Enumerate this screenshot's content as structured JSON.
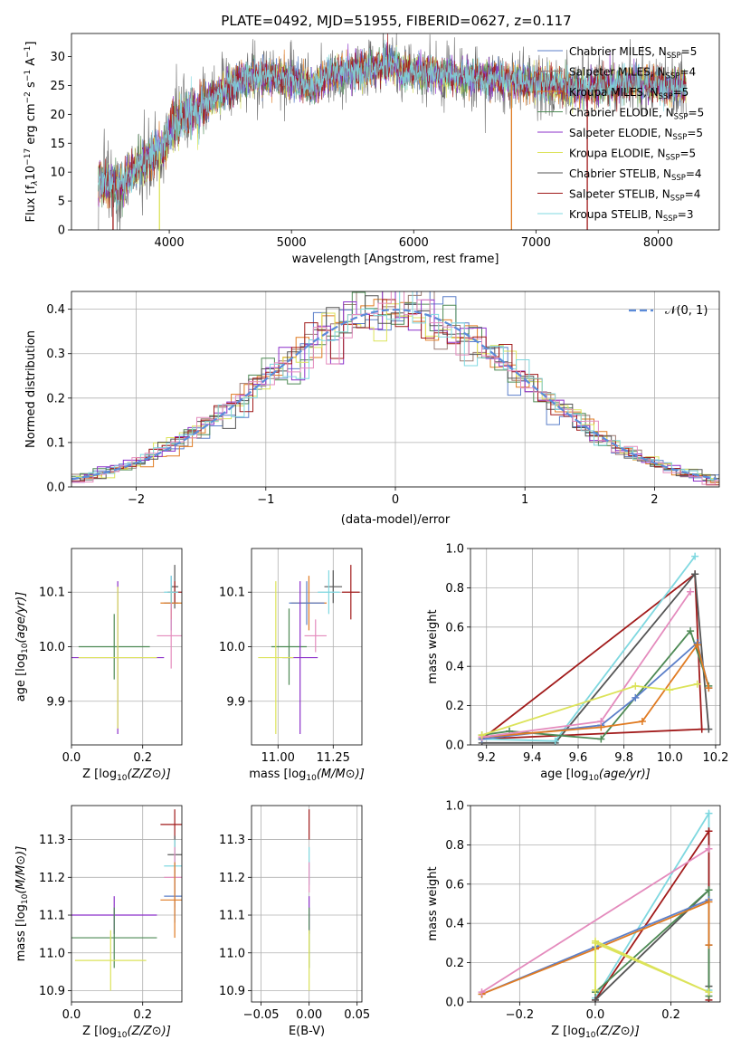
{
  "title": "PLATE=0492, MJD=51955, FIBERID=0627, z=0.117",
  "colors": {
    "chabrier_miles": "#5b7fc9",
    "salpeter_miles": "#9b7b73",
    "kroupa_miles": "#e07b22",
    "chabrier_elodie": "#4e8a55",
    "salpeter_elodie": "#8b2fc9",
    "kroupa_elodie": "#dce35a",
    "chabrier_stelib": "#555555",
    "salpeter_stelib": "#a11a1a",
    "kroupa_stelib": "#7fd8e0",
    "pink": "#e48bbd",
    "gauss": "#5b8bd9"
  },
  "legend_spectrum": [
    {
      "label": "Chabrier MILES, N",
      "sub": "SSP",
      "tail": "=5",
      "color": "#5b7fc9"
    },
    {
      "label": "Salpeter MILES, N",
      "sub": "SSP",
      "tail": "=4",
      "color": "#9b7b73"
    },
    {
      "label": "Kroupa MILES, N",
      "sub": "SSP",
      "tail": "=5",
      "color": "#e07b22"
    },
    {
      "label": "Chabrier ELODIE, N",
      "sub": "SSP",
      "tail": "=5",
      "color": "#4e8a55"
    },
    {
      "label": "Salpeter ELODIE, N",
      "sub": "SSP",
      "tail": "=5",
      "color": "#8b2fc9"
    },
    {
      "label": "Kroupa ELODIE, N",
      "sub": "SSP",
      "tail": "=5",
      "color": "#dce35a"
    },
    {
      "label": "Chabrier STELIB, N",
      "sub": "SSP",
      "tail": "=4",
      "color": "#555555"
    },
    {
      "label": "Salpeter STELIB, N",
      "sub": "SSP",
      "tail": "=4",
      "color": "#a11a1a"
    },
    {
      "label": "Kroupa STELIB, N",
      "sub": "SSP",
      "tail": "=3",
      "color": "#7fd8e0"
    }
  ],
  "legend_gauss": "𝒩(0, 1)",
  "chart_data": [
    {
      "id": "spectrum",
      "type": "line",
      "xlabel": "wavelength [Angstrom, rest frame]",
      "ylabel_parts": [
        "Flux [f",
        "λ",
        "10",
        "−17",
        " erg cm",
        "−2",
        " s",
        "−1",
        " A",
        "−1",
        "]"
      ],
      "xlim": [
        3200,
        8500
      ],
      "ylim": [
        0,
        34
      ],
      "xticks": [
        4000,
        5000,
        6000,
        7000,
        8000
      ],
      "yticks": [
        0,
        5,
        10,
        15,
        20,
        25,
        30
      ],
      "grid": false,
      "continuum": [
        [
          3420,
          8.5
        ],
        [
          3600,
          7.5
        ],
        [
          3700,
          10
        ],
        [
          3800,
          12
        ],
        [
          3950,
          14
        ],
        [
          4000,
          17
        ],
        [
          4100,
          19.5
        ],
        [
          4250,
          21
        ],
        [
          4400,
          23.5
        ],
        [
          4600,
          26
        ],
        [
          4800,
          26.5
        ],
        [
          5000,
          26
        ],
        [
          5175,
          24.5
        ],
        [
          5300,
          27
        ],
        [
          5500,
          27.5
        ],
        [
          5700,
          28
        ],
        [
          5850,
          28.5
        ],
        [
          5900,
          27
        ],
        [
          6000,
          27.5
        ],
        [
          6200,
          27
        ],
        [
          6400,
          26.5
        ],
        [
          6600,
          26.5
        ],
        [
          6800,
          25.5
        ],
        [
          7000,
          25.5
        ],
        [
          7200,
          25
        ],
        [
          7400,
          24.5
        ],
        [
          7600,
          25
        ],
        [
          7800,
          25.5
        ],
        [
          8000,
          25
        ],
        [
          8230,
          24.5
        ]
      ],
      "dips": [
        {
          "x": 3540,
          "to": 0,
          "color": "salpeter_stelib"
        },
        {
          "x": 3920,
          "to": 0,
          "color": "kroupa_elodie"
        },
        {
          "x": 6800,
          "to": 0,
          "color": "kroupa_miles"
        },
        {
          "x": 7420,
          "to": 0,
          "color": "salpeter_stelib"
        }
      ]
    },
    {
      "id": "residuals",
      "type": "histogram",
      "xlabel": "(data-model)/error",
      "ylabel": "Normed distribution",
      "xlim": [
        -2.5,
        2.5
      ],
      "ylim": [
        0,
        0.44
      ],
      "xticks": [
        -2,
        -1,
        0,
        1,
        2
      ],
      "xtick_labels": [
        "−2",
        "−1",
        "0",
        "1",
        "2"
      ],
      "yticks": [
        0.0,
        0.1,
        0.2,
        0.3,
        0.4
      ],
      "ytick_labels": [
        "0.0",
        "0.1",
        "0.2",
        "0.3",
        "0.4"
      ],
      "grid": true,
      "bin_width": 0.1,
      "legend_loc": "upper right"
    },
    {
      "id": "z_age",
      "type": "errorbar",
      "xlabel": "Z [log10(Z/Z⊙)]",
      "ylabel": "age  [log10(age/yr)]",
      "xlim": [
        0.0,
        0.31
      ],
      "ylim": [
        9.82,
        10.18
      ],
      "xticks": [
        0.0,
        0.2
      ],
      "xtick_labels": [
        "0.0",
        "0.2"
      ],
      "yticks": [
        9.9,
        10.0,
        10.1
      ],
      "ytick_labels": [
        "9.9",
        "10.0",
        "10.1"
      ],
      "points": [
        {
          "x": 0.29,
          "xerr": 0.01,
          "y": 10.11,
          "yerr": 0.04,
          "c": "chabrier_stelib"
        },
        {
          "x": 0.29,
          "xerr": 0.02,
          "y": 10.1,
          "yerr": 0.02,
          "c": "salpeter_stelib"
        },
        {
          "x": 0.28,
          "xerr": 0.02,
          "y": 10.08,
          "yerr": 0.05,
          "c": "chabrier_miles"
        },
        {
          "x": 0.28,
          "xerr": 0.03,
          "y": 10.08,
          "yerr": 0.03,
          "c": "kroupa_miles"
        },
        {
          "x": 0.28,
          "xerr": 0.02,
          "y": 10.1,
          "yerr": 0.03,
          "c": "kroupa_stelib"
        },
        {
          "x": 0.28,
          "xerr": 0.04,
          "y": 10.02,
          "yerr": 0.06,
          "c": "pink"
        },
        {
          "x": 0.12,
          "xerr": 0.1,
          "y": 10.0,
          "yerr": 0.06,
          "c": "chabrier_elodie"
        },
        {
          "x": 0.13,
          "xerr": 0.13,
          "y": 9.98,
          "yerr": 0.14,
          "c": "salpeter_elodie"
        },
        {
          "x": 0.13,
          "xerr": 0.11,
          "y": 9.98,
          "yerr": 0.13,
          "c": "kroupa_elodie"
        }
      ]
    },
    {
      "id": "mass_age",
      "type": "errorbar",
      "xlabel": "mass [log10(M/M⊙)]",
      "ylabel": "",
      "xlim": [
        10.88,
        11.38
      ],
      "ylim": [
        9.82,
        10.18
      ],
      "xticks": [
        11.0,
        11.25
      ],
      "xtick_labels": [
        "11.00",
        "11.25"
      ],
      "yticks": [
        9.9,
        10.0,
        10.1
      ],
      "ytick_labels": [
        "9.9",
        "10.0",
        "10.1"
      ],
      "points": [
        {
          "x": 11.33,
          "xerr": 0.04,
          "y": 10.1,
          "yerr": 0.05,
          "c": "salpeter_stelib"
        },
        {
          "x": 11.25,
          "xerr": 0.04,
          "y": 10.11,
          "yerr": 0.03,
          "c": "chabrier_stelib"
        },
        {
          "x": 11.23,
          "xerr": 0.05,
          "y": 10.1,
          "yerr": 0.04,
          "c": "kroupa_stelib"
        },
        {
          "x": 11.17,
          "xerr": 0.05,
          "y": 10.02,
          "yerr": 0.03,
          "c": "pink"
        },
        {
          "x": 11.14,
          "xerr": 0.08,
          "y": 10.08,
          "yerr": 0.05,
          "c": "kroupa_miles"
        },
        {
          "x": 11.13,
          "xerr": 0.08,
          "y": 10.08,
          "yerr": 0.04,
          "c": "chabrier_miles"
        },
        {
          "x": 11.05,
          "xerr": 0.08,
          "y": 10.0,
          "yerr": 0.07,
          "c": "chabrier_elodie"
        },
        {
          "x": 11.1,
          "xerr": 0.08,
          "y": 9.98,
          "yerr": 0.14,
          "c": "salpeter_elodie"
        },
        {
          "x": 10.99,
          "xerr": 0.08,
          "y": 9.98,
          "yerr": 0.14,
          "c": "kroupa_elodie"
        }
      ]
    },
    {
      "id": "age_weight",
      "type": "line",
      "xlabel": "age  [log10(age/yr)]",
      "ylabel": "mass weight",
      "xlim": [
        9.13,
        10.22
      ],
      "ylim": [
        0,
        1.0
      ],
      "xticks": [
        9.2,
        9.4,
        9.6,
        9.8,
        10.0,
        10.2
      ],
      "xtick_labels": [
        "9.2",
        "9.4",
        "9.6",
        "9.8",
        "10.0",
        "10.2"
      ],
      "yticks": [
        0.0,
        0.2,
        0.4,
        0.6,
        0.8,
        1.0
      ],
      "ytick_labels": [
        "0.0",
        "0.2",
        "0.4",
        "0.6",
        "0.8",
        "1.0"
      ],
      "grid": true,
      "series": [
        {
          "c": "salpeter_stelib",
          "pts": [
            [
              9.18,
              0.03
            ],
            [
              10.11,
              0.87
            ],
            [
              10.14,
              0.08
            ],
            [
              9.18,
              0.03
            ]
          ]
        },
        {
          "c": "chabrier_stelib",
          "pts": [
            [
              9.18,
              0.01
            ],
            [
              9.5,
              0.01
            ],
            [
              10.11,
              0.87
            ],
            [
              10.17,
              0.08
            ]
          ]
        },
        {
          "c": "kroupa_stelib",
          "pts": [
            [
              9.18,
              0.03
            ],
            [
              9.5,
              0.02
            ],
            [
              10.11,
              0.96
            ]
          ]
        },
        {
          "c": "chabrier_elodie",
          "pts": [
            [
              9.18,
              0.05
            ],
            [
              9.3,
              0.07
            ],
            [
              9.7,
              0.03
            ],
            [
              10.09,
              0.58
            ],
            [
              10.17,
              0.3
            ]
          ]
        },
        {
          "c": "chabrier_miles",
          "pts": [
            [
              9.18,
              0.03
            ],
            [
              9.7,
              0.1
            ],
            [
              9.85,
              0.24
            ],
            [
              10.12,
              0.52
            ],
            [
              10.17,
              0.29
            ]
          ]
        },
        {
          "c": "kroupa_miles",
          "pts": [
            [
              9.18,
              0.04
            ],
            [
              9.7,
              0.09
            ],
            [
              9.88,
              0.12
            ],
            [
              10.12,
              0.51
            ],
            [
              10.17,
              0.29
            ]
          ]
        },
        {
          "c": "pink",
          "pts": [
            [
              9.18,
              0.04
            ],
            [
              9.7,
              0.12
            ],
            [
              10.09,
              0.78
            ]
          ]
        },
        {
          "c": "kroupa_elodie",
          "pts": [
            [
              9.18,
              0.05
            ],
            [
              9.85,
              0.3
            ],
            [
              10.0,
              0.28
            ],
            [
              10.12,
              0.31
            ]
          ]
        }
      ]
    },
    {
      "id": "z_mass",
      "type": "errorbar",
      "xlabel": "Z [log10(Z/Z⊙)]",
      "ylabel": "mass [log10(M/M⊙)]",
      "xlim": [
        0.0,
        0.31
      ],
      "ylim": [
        10.87,
        11.39
      ],
      "xticks": [
        0.0,
        0.2
      ],
      "xtick_labels": [
        "0.0",
        "0.2"
      ],
      "yticks": [
        10.9,
        11.0,
        11.1,
        11.2,
        11.3
      ],
      "ytick_labels": [
        "10.9",
        "11.0",
        "11.1",
        "11.2",
        "11.3"
      ],
      "points": [
        {
          "x": 0.29,
          "xerr": 0.04,
          "y": 11.34,
          "yerr": 0.04,
          "c": "salpeter_stelib"
        },
        {
          "x": 0.29,
          "xerr": 0.02,
          "y": 11.26,
          "yerr": 0.05,
          "c": "chabrier_stelib"
        },
        {
          "x": 0.29,
          "xerr": 0.03,
          "y": 11.23,
          "yerr": 0.07,
          "c": "kroupa_stelib"
        },
        {
          "x": 0.29,
          "xerr": 0.03,
          "y": 11.2,
          "yerr": 0.08,
          "c": "pink"
        },
        {
          "x": 0.29,
          "xerr": 0.03,
          "y": 11.15,
          "yerr": 0.07,
          "c": "chabrier_miles"
        },
        {
          "x": 0.29,
          "xerr": 0.04,
          "y": 11.14,
          "yerr": 0.1,
          "c": "kroupa_miles"
        },
        {
          "x": 0.12,
          "xerr": 0.12,
          "y": 11.1,
          "yerr": 0.05,
          "c": "salpeter_elodie"
        },
        {
          "x": 0.12,
          "xerr": 0.12,
          "y": 11.04,
          "yerr": 0.08,
          "c": "chabrier_elodie"
        },
        {
          "x": 0.11,
          "xerr": 0.1,
          "y": 10.98,
          "yerr": 0.08,
          "c": "kroupa_elodie"
        }
      ]
    },
    {
      "id": "ebv_mass",
      "type": "errorbar",
      "xlabel": "E(B-V)",
      "ylabel": "",
      "xlim": [
        -0.06,
        0.055
      ],
      "ylim": [
        10.87,
        11.39
      ],
      "xticks": [
        -0.05,
        0.0,
        0.05
      ],
      "xtick_labels": [
        "−0.05",
        "0.00",
        "0.05"
      ],
      "yticks": [
        10.9,
        11.0,
        11.1,
        11.2,
        11.3
      ],
      "ytick_labels": [
        "10.9",
        "11.0",
        "11.1",
        "11.2",
        "11.3"
      ],
      "points": [
        {
          "x": 0.0,
          "xerr": 0,
          "y": 11.34,
          "yerr": 0.04,
          "c": "salpeter_stelib"
        },
        {
          "x": 0.0,
          "xerr": 0,
          "y": 11.23,
          "yerr": 0.05,
          "c": "kroupa_stelib"
        },
        {
          "x": 0.0,
          "xerr": 0,
          "y": 11.2,
          "yerr": 0.04,
          "c": "pink"
        },
        {
          "x": 0.0,
          "xerr": 0,
          "y": 11.1,
          "yerr": 0.05,
          "c": "salpeter_elodie"
        },
        {
          "x": 0.0,
          "xerr": 0,
          "y": 11.04,
          "yerr": 0.08,
          "c": "chabrier_elodie"
        },
        {
          "x": 0.0,
          "xerr": 0,
          "y": 10.98,
          "yerr": 0.08,
          "c": "kroupa_elodie"
        }
      ]
    },
    {
      "id": "z_weight",
      "type": "line",
      "xlabel": "Z [log10(Z/Z⊙)]",
      "ylabel": "mass weight",
      "xlim": [
        -0.33,
        0.33
      ],
      "ylim": [
        0,
        1.0
      ],
      "xticks": [
        -0.2,
        0.0,
        0.2
      ],
      "xtick_labels": [
        "−0.2",
        "0.0",
        "0.2"
      ],
      "yticks": [
        0.0,
        0.2,
        0.4,
        0.6,
        0.8,
        1.0
      ],
      "ytick_labels": [
        "0.0",
        "0.2",
        "0.4",
        "0.6",
        "0.8",
        "1.0"
      ],
      "grid": true,
      "series": [
        {
          "c": "kroupa_stelib",
          "pts": [
            [
              0.0,
              0.02
            ],
            [
              0.3,
              0.96
            ],
            [
              0.3,
              0.06
            ]
          ]
        },
        {
          "c": "salpeter_stelib",
          "pts": [
            [
              0.0,
              0.01
            ],
            [
              0.3,
              0.87
            ],
            [
              0.3,
              0.01
            ]
          ]
        },
        {
          "c": "chabrier_stelib",
          "pts": [
            [
              0.0,
              0.01
            ],
            [
              0.3,
              0.57
            ],
            [
              0.3,
              0.08
            ]
          ]
        },
        {
          "c": "chabrier_elodie",
          "pts": [
            [
              0.0,
              0.05
            ],
            [
              0.3,
              0.57
            ],
            [
              0.3,
              0.03
            ]
          ]
        },
        {
          "c": "chabrier_miles",
          "pts": [
            [
              -0.3,
              0.04
            ],
            [
              0.0,
              0.28
            ],
            [
              0.3,
              0.52
            ],
            [
              0.3,
              0.29
            ]
          ]
        },
        {
          "c": "kroupa_miles",
          "pts": [
            [
              -0.3,
              0.04
            ],
            [
              0.0,
              0.27
            ],
            [
              0.3,
              0.51
            ],
            [
              0.3,
              0.29
            ]
          ]
        },
        {
          "c": "pink",
          "pts": [
            [
              -0.3,
              0.05
            ],
            [
              0.3,
              0.78
            ]
          ]
        },
        {
          "c": "kroupa_elodie",
          "pts": [
            [
              0.0,
              0.3
            ],
            [
              0.3,
              0.05
            ],
            [
              0.0,
              0.31
            ],
            [
              0.0,
              0.06
            ]
          ]
        }
      ]
    }
  ]
}
